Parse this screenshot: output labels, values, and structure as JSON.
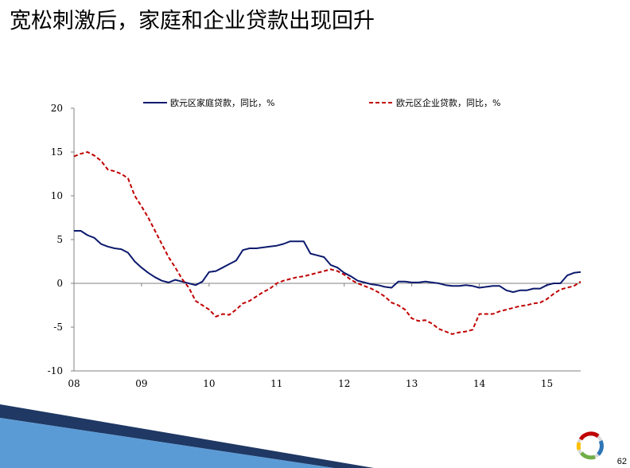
{
  "slide": {
    "title": "宽松刺激后，家庭和企业贷款出现回升",
    "page_number": "62"
  },
  "colors": {
    "household": "#0c1a6e",
    "corporate": "#c00000",
    "axis": "#808080",
    "deco_dark": "#1f3864",
    "deco_light": "#5b9bd5"
  },
  "chart_data": {
    "type": "line",
    "title": "",
    "xlabel": "",
    "ylabel": "",
    "ylim": [
      -10,
      20
    ],
    "yticks": [
      20,
      15,
      10,
      5,
      0,
      -5,
      -10
    ],
    "xlim": [
      2008.0,
      2015.5
    ],
    "xticks": [
      {
        "label": "08",
        "value": 2008
      },
      {
        "label": "09",
        "value": 2009
      },
      {
        "label": "10",
        "value": 2010
      },
      {
        "label": "11",
        "value": 2011
      },
      {
        "label": "12",
        "value": 2012
      },
      {
        "label": "13",
        "value": 2013
      },
      {
        "label": "14",
        "value": 2014
      },
      {
        "label": "15",
        "value": 2015
      }
    ],
    "grid": false,
    "legend_position": "top",
    "series": [
      {
        "name": "欧元区家庭贷款，同比，%",
        "style": "solid",
        "points": [
          [
            2008.0,
            6.0
          ],
          [
            2008.1,
            6.0
          ],
          [
            2008.2,
            5.5
          ],
          [
            2008.3,
            5.2
          ],
          [
            2008.4,
            4.5
          ],
          [
            2008.5,
            4.2
          ],
          [
            2008.6,
            4.0
          ],
          [
            2008.7,
            3.9
          ],
          [
            2008.8,
            3.5
          ],
          [
            2008.9,
            2.5
          ],
          [
            2009.0,
            1.8
          ],
          [
            2009.1,
            1.2
          ],
          [
            2009.2,
            0.7
          ],
          [
            2009.3,
            0.3
          ],
          [
            2009.4,
            0.1
          ],
          [
            2009.5,
            0.4
          ],
          [
            2009.6,
            0.2
          ],
          [
            2009.7,
            0.0
          ],
          [
            2009.8,
            -0.2
          ],
          [
            2009.9,
            0.2
          ],
          [
            2010.0,
            1.3
          ],
          [
            2010.1,
            1.4
          ],
          [
            2010.2,
            1.8
          ],
          [
            2010.3,
            2.2
          ],
          [
            2010.4,
            2.6
          ],
          [
            2010.5,
            3.8
          ],
          [
            2010.6,
            4.0
          ],
          [
            2010.7,
            4.0
          ],
          [
            2010.8,
            4.1
          ],
          [
            2010.9,
            4.2
          ],
          [
            2011.0,
            4.3
          ],
          [
            2011.1,
            4.5
          ],
          [
            2011.2,
            4.8
          ],
          [
            2011.3,
            4.8
          ],
          [
            2011.4,
            4.8
          ],
          [
            2011.5,
            3.4
          ],
          [
            2011.6,
            3.2
          ],
          [
            2011.7,
            3.0
          ],
          [
            2011.8,
            2.1
          ],
          [
            2011.9,
            1.8
          ],
          [
            2012.0,
            1.2
          ],
          [
            2012.1,
            0.8
          ],
          [
            2012.2,
            0.3
          ],
          [
            2012.3,
            0.1
          ],
          [
            2012.4,
            -0.1
          ],
          [
            2012.5,
            -0.2
          ],
          [
            2012.6,
            -0.4
          ],
          [
            2012.7,
            -0.5
          ],
          [
            2012.8,
            0.2
          ],
          [
            2012.9,
            0.2
          ],
          [
            2013.0,
            0.1
          ],
          [
            2013.1,
            0.1
          ],
          [
            2013.2,
            0.2
          ],
          [
            2013.3,
            0.1
          ],
          [
            2013.4,
            0.0
          ],
          [
            2013.5,
            -0.2
          ],
          [
            2013.6,
            -0.3
          ],
          [
            2013.7,
            -0.3
          ],
          [
            2013.8,
            -0.2
          ],
          [
            2013.9,
            -0.3
          ],
          [
            2014.0,
            -0.5
          ],
          [
            2014.1,
            -0.4
          ],
          [
            2014.2,
            -0.3
          ],
          [
            2014.3,
            -0.3
          ],
          [
            2014.4,
            -0.8
          ],
          [
            2014.5,
            -1.0
          ],
          [
            2014.6,
            -0.8
          ],
          [
            2014.7,
            -0.8
          ],
          [
            2014.8,
            -0.6
          ],
          [
            2014.9,
            -0.6
          ],
          [
            2015.0,
            -0.2
          ],
          [
            2015.1,
            0.0
          ],
          [
            2015.2,
            0.0
          ],
          [
            2015.3,
            0.9
          ],
          [
            2015.4,
            1.2
          ],
          [
            2015.5,
            1.3
          ]
        ]
      },
      {
        "name": "欧元区企业贷款，同比，%",
        "style": "dashed",
        "points": [
          [
            2008.0,
            14.5
          ],
          [
            2008.1,
            14.8
          ],
          [
            2008.2,
            15.0
          ],
          [
            2008.3,
            14.6
          ],
          [
            2008.4,
            14.0
          ],
          [
            2008.5,
            13.0
          ],
          [
            2008.6,
            12.8
          ],
          [
            2008.7,
            12.5
          ],
          [
            2008.8,
            12.0
          ],
          [
            2008.9,
            10.0
          ],
          [
            2009.0,
            8.8
          ],
          [
            2009.1,
            7.5
          ],
          [
            2009.2,
            6.0
          ],
          [
            2009.3,
            4.5
          ],
          [
            2009.4,
            3.0
          ],
          [
            2009.5,
            1.8
          ],
          [
            2009.6,
            0.5
          ],
          [
            2009.7,
            -0.5
          ],
          [
            2009.8,
            -2.0
          ],
          [
            2009.9,
            -2.5
          ],
          [
            2010.0,
            -3.0
          ],
          [
            2010.1,
            -3.8
          ],
          [
            2010.2,
            -3.5
          ],
          [
            2010.3,
            -3.6
          ],
          [
            2010.4,
            -3.0
          ],
          [
            2010.5,
            -2.3
          ],
          [
            2010.6,
            -2.0
          ],
          [
            2010.7,
            -1.5
          ],
          [
            2010.8,
            -1.0
          ],
          [
            2010.9,
            -0.6
          ],
          [
            2011.0,
            0.0
          ],
          [
            2011.1,
            0.3
          ],
          [
            2011.2,
            0.5
          ],
          [
            2011.3,
            0.7
          ],
          [
            2011.4,
            0.8
          ],
          [
            2011.5,
            1.0
          ],
          [
            2011.6,
            1.2
          ],
          [
            2011.7,
            1.4
          ],
          [
            2011.8,
            1.6
          ],
          [
            2011.9,
            1.4
          ],
          [
            2012.0,
            1.0
          ],
          [
            2012.1,
            0.4
          ],
          [
            2012.2,
            0.0
          ],
          [
            2012.3,
            -0.3
          ],
          [
            2012.4,
            -0.6
          ],
          [
            2012.5,
            -1.0
          ],
          [
            2012.6,
            -1.5
          ],
          [
            2012.7,
            -2.2
          ],
          [
            2012.8,
            -2.5
          ],
          [
            2012.9,
            -3.0
          ],
          [
            2013.0,
            -4.0
          ],
          [
            2013.1,
            -4.3
          ],
          [
            2013.2,
            -4.2
          ],
          [
            2013.3,
            -4.6
          ],
          [
            2013.4,
            -5.2
          ],
          [
            2013.5,
            -5.5
          ],
          [
            2013.6,
            -5.8
          ],
          [
            2013.7,
            -5.6
          ],
          [
            2013.8,
            -5.5
          ],
          [
            2013.9,
            -5.3
          ],
          [
            2014.0,
            -3.5
          ],
          [
            2014.1,
            -3.5
          ],
          [
            2014.2,
            -3.5
          ],
          [
            2014.3,
            -3.2
          ],
          [
            2014.4,
            -3.0
          ],
          [
            2014.5,
            -2.8
          ],
          [
            2014.6,
            -2.6
          ],
          [
            2014.7,
            -2.5
          ],
          [
            2014.8,
            -2.3
          ],
          [
            2014.9,
            -2.2
          ],
          [
            2015.0,
            -1.8
          ],
          [
            2015.1,
            -1.2
          ],
          [
            2015.2,
            -0.7
          ],
          [
            2015.3,
            -0.5
          ],
          [
            2015.4,
            -0.3
          ],
          [
            2015.5,
            0.2
          ]
        ]
      }
    ]
  }
}
